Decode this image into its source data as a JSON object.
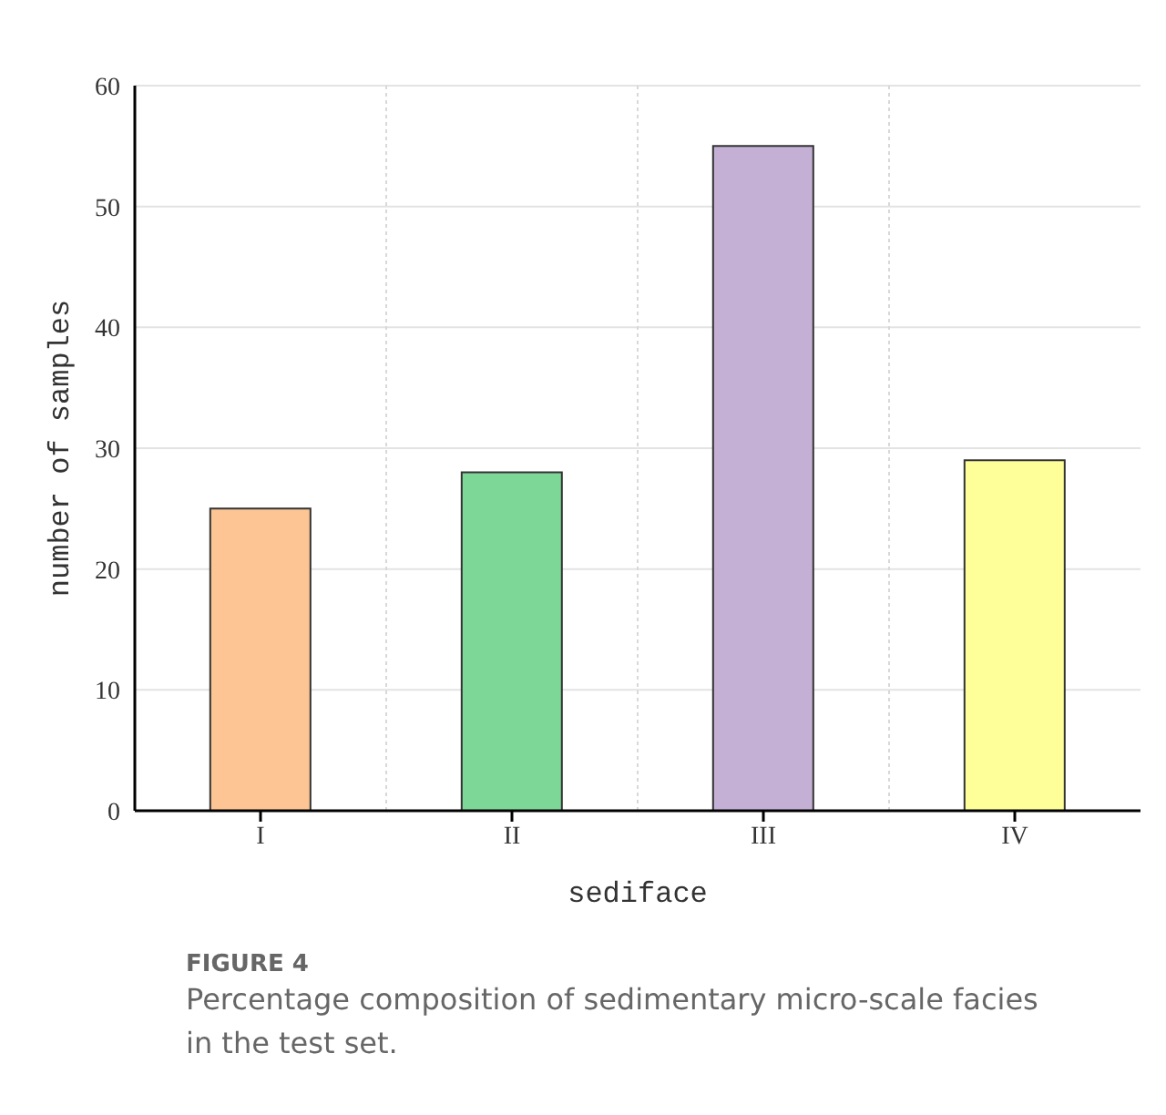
{
  "chart_data": {
    "type": "bar",
    "xlabel": "sediface",
    "ylabel": "number of samples",
    "categories": [
      "I",
      "II",
      "III",
      "IV"
    ],
    "values": [
      25,
      28,
      55,
      29
    ],
    "colors": [
      "#fcc593",
      "#7dd897",
      "#c4b0d5",
      "#ffff99"
    ],
    "ylim": [
      0,
      60
    ],
    "yticks": [
      0,
      10,
      20,
      30,
      40,
      50,
      60
    ],
    "grid": true,
    "annotations": [
      "FIGURE 4",
      "Percentage composition of sedimentary micro-scale facies in the test set."
    ]
  }
}
